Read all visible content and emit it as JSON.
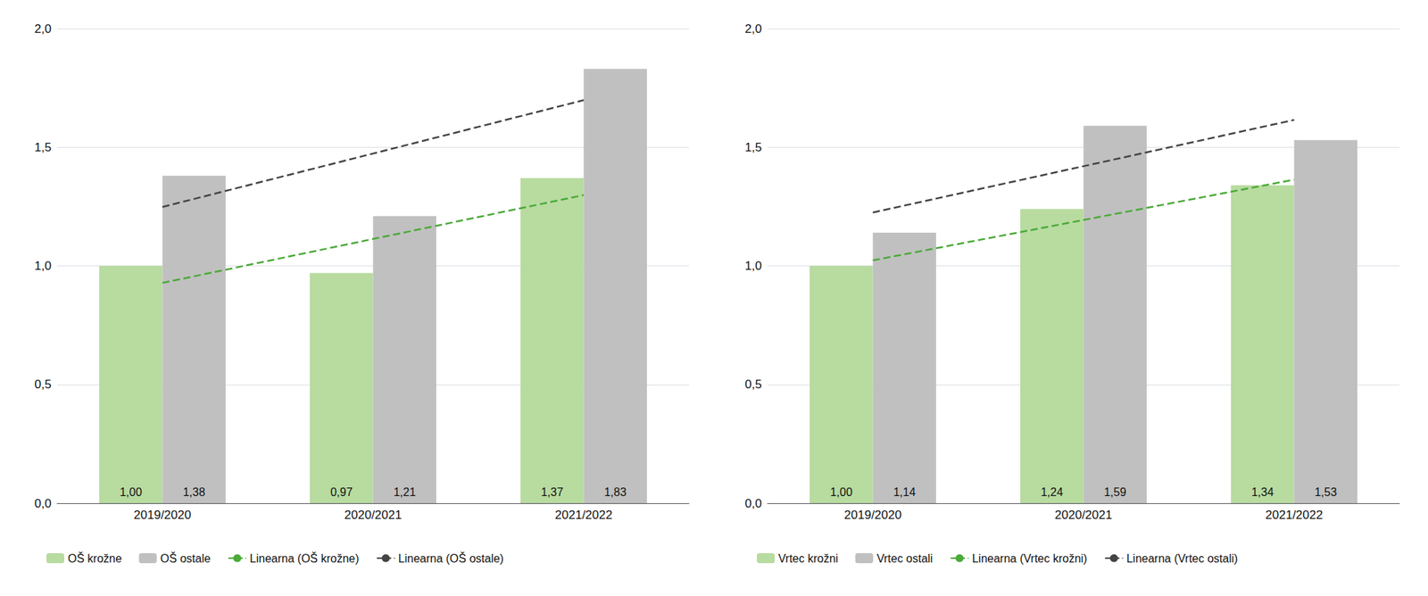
{
  "chart_data": [
    {
      "type": "bar",
      "categories": [
        "2019/2020",
        "2020/2021",
        "2021/2022"
      ],
      "series": [
        {
          "name": "OŠ krožne",
          "color": "#b8dba0",
          "values": [
            1.0,
            0.97,
            1.37
          ],
          "value_labels": [
            "1,00",
            "0,97",
            "1,37"
          ]
        },
        {
          "name": "OŠ ostale",
          "color": "#c0c0c0",
          "values": [
            1.38,
            1.21,
            1.83
          ],
          "value_labels": [
            "1,38",
            "1,21",
            "1,83"
          ]
        },
        {
          "name": "Linearna (OŠ krožne)",
          "type": "line",
          "line_style": "dashed",
          "color": "#4aaa38",
          "values": [
            0.928333,
            1.113333,
            1.298333
          ]
        },
        {
          "name": "Linearna (OŠ ostale)",
          "type": "line",
          "line_style": "dashed",
          "color": "#444444",
          "values": [
            1.248333,
            1.473333,
            1.698333
          ]
        }
      ],
      "ylim": [
        0,
        2.0
      ],
      "yticks": [
        {
          "value": 0.0,
          "label": "0,0"
        },
        {
          "value": 0.5,
          "label": "0,5"
        },
        {
          "value": 1.0,
          "label": "1,0"
        },
        {
          "value": 1.5,
          "label": "1,5"
        },
        {
          "value": 2.0,
          "label": "2,0"
        }
      ],
      "grid": true,
      "data_labels": true,
      "legend": "bottom"
    },
    {
      "type": "bar",
      "categories": [
        "2019/2020",
        "2020/2021",
        "2021/2022"
      ],
      "series": [
        {
          "name": "Vrtec krožni",
          "color": "#b8dba0",
          "values": [
            1.0,
            1.24,
            1.34
          ],
          "value_labels": [
            "1,00",
            "1,24",
            "1,34"
          ]
        },
        {
          "name": "Vrtec ostali",
          "color": "#c0c0c0",
          "values": [
            1.14,
            1.59,
            1.53
          ],
          "value_labels": [
            "1,14",
            "1,59",
            "1,53"
          ]
        },
        {
          "name": "Linearna (Vrtec krožni)",
          "type": "line",
          "line_style": "dashed",
          "color": "#4aaa38",
          "values": [
            1.023333,
            1.193333,
            1.363333
          ]
        },
        {
          "name": "Linearna (Vrtec ostali)",
          "type": "line",
          "line_style": "dashed",
          "color": "#444444",
          "values": [
            1.225,
            1.42,
            1.615
          ]
        }
      ],
      "ylim": [
        0,
        2.0
      ],
      "yticks": [
        {
          "value": 0.0,
          "label": "0,0"
        },
        {
          "value": 0.5,
          "label": "0,5"
        },
        {
          "value": 1.0,
          "label": "1,0"
        },
        {
          "value": 1.5,
          "label": "1,5"
        },
        {
          "value": 2.0,
          "label": "2,0"
        }
      ],
      "grid": true,
      "data_labels": true,
      "legend": "bottom"
    }
  ]
}
